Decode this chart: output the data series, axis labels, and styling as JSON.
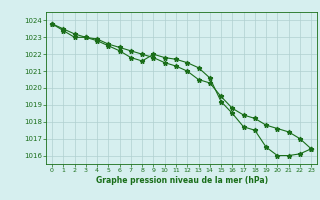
{
  "line1_x": [
    0,
    1,
    2,
    3,
    4,
    5,
    6,
    7,
    8,
    9,
    10,
    11,
    12,
    13,
    14,
    15,
    16,
    17,
    18,
    19,
    20,
    21,
    22,
    23
  ],
  "line1_y": [
    1023.8,
    1023.5,
    1023.2,
    1023.0,
    1022.8,
    1022.5,
    1022.2,
    1021.8,
    1021.6,
    1022.0,
    1021.8,
    1021.7,
    1021.5,
    1021.2,
    1020.6,
    1019.2,
    1018.5,
    1017.7,
    1017.5,
    1016.5,
    1016.0,
    1016.0,
    1016.1,
    1016.4
  ],
  "line2_x": [
    0,
    1,
    2,
    3,
    4,
    5,
    6,
    7,
    8,
    9,
    10,
    11,
    12,
    13,
    14,
    15,
    16,
    17,
    18,
    19,
    20,
    21,
    22,
    23
  ],
  "line2_y": [
    1023.8,
    1023.4,
    1023.0,
    1023.0,
    1022.9,
    1022.6,
    1022.4,
    1022.2,
    1022.0,
    1021.8,
    1021.5,
    1021.3,
    1021.0,
    1020.5,
    1020.3,
    1019.5,
    1018.8,
    1018.4,
    1018.2,
    1017.8,
    1017.6,
    1017.4,
    1017.0,
    1016.4
  ],
  "line_color": "#1a6e1a",
  "marker": "*",
  "bg_color": "#d6efef",
  "grid_color": "#b0d0d0",
  "xlabel": "Graphe pression niveau de la mer (hPa)",
  "xlabel_color": "#1a6e1a",
  "tick_color": "#1a6e1a",
  "ylim_min": 1015.5,
  "ylim_max": 1024.5,
  "xlim_min": -0.5,
  "xlim_max": 23.5,
  "yticks": [
    1016,
    1017,
    1018,
    1019,
    1020,
    1021,
    1022,
    1023,
    1024
  ],
  "xticks": [
    0,
    1,
    2,
    3,
    4,
    5,
    6,
    7,
    8,
    9,
    10,
    11,
    12,
    13,
    14,
    15,
    16,
    17,
    18,
    19,
    20,
    21,
    22,
    23
  ]
}
